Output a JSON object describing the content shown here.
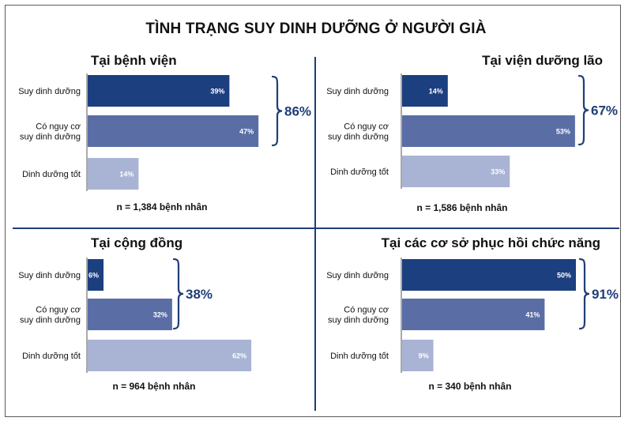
{
  "title": "TÌNH TRẠNG SUY DINH DƯỠNG Ở NGƯỜI GIÀ",
  "colors": {
    "dark": "#1c3f7f",
    "mid": "#5a6ea5",
    "light": "#a9b3d4",
    "brace": "#1f3d77",
    "text": "#111111"
  },
  "chart_data": [
    {
      "type": "bar",
      "title": "Tại bệnh viện",
      "categories": [
        "Suy dinh dưỡng",
        "Có nguy cơ suy dinh dưỡng",
        "Dinh dưỡng tốt"
      ],
      "category_lines": [
        [
          "Suy dinh dưỡng"
        ],
        [
          "Có nguy cơ",
          "suy dinh dưỡng"
        ],
        [
          "Dinh dưỡng tốt"
        ]
      ],
      "values": [
        39,
        47,
        14
      ],
      "value_labels": [
        "39%",
        "47%",
        "14%"
      ],
      "brace_total": "86%",
      "note": "n = 1,384 bệnh nhân"
    },
    {
      "type": "bar",
      "title": "Tại viện dưỡng lão",
      "categories": [
        "Suy dinh dưỡng",
        "Có nguy cơ suy dinh dưỡng",
        "Dinh dưỡng tốt"
      ],
      "category_lines": [
        [
          "Suy dinh dưỡng"
        ],
        [
          "Có nguy cơ",
          "suy dinh dưỡng"
        ],
        [
          "Dinh dưỡng tốt"
        ]
      ],
      "values": [
        14,
        53,
        33
      ],
      "value_labels": [
        "14%",
        "53%",
        "33%"
      ],
      "brace_total": "67%",
      "note": "n = 1,586 bệnh nhân"
    },
    {
      "type": "bar",
      "title": "Tại cộng đồng",
      "categories": [
        "Suy dinh dưỡng",
        "Có nguy cơ suy dinh dưỡng",
        "Dinh dưỡng tốt"
      ],
      "category_lines": [
        [
          "Suy dinh dưỡng"
        ],
        [
          "Có nguy cơ",
          "suy dinh dưỡng"
        ],
        [
          "Dinh dưỡng tốt"
        ]
      ],
      "values": [
        6,
        32,
        62
      ],
      "value_labels": [
        "6%",
        "32%",
        "62%"
      ],
      "brace_total": "38%",
      "note": "n = 964 bệnh nhân"
    },
    {
      "type": "bar",
      "title": "Tại các cơ sở phục hồi chức năng",
      "categories": [
        "Suy dinh dưỡng",
        "Có nguy cơ suy dinh dưỡng",
        "Dinh dưỡng tốt"
      ],
      "category_lines": [
        [
          "Suy dinh dưỡng"
        ],
        [
          "Có nguy cơ",
          "suy dinh dưỡng"
        ],
        [
          "Dinh dưỡng tốt"
        ]
      ],
      "values": [
        50,
        41,
        9
      ],
      "value_labels": [
        "50%",
        "41%",
        "9%"
      ],
      "brace_total": "91%",
      "note": "n = 340 bệnh nhân"
    }
  ]
}
